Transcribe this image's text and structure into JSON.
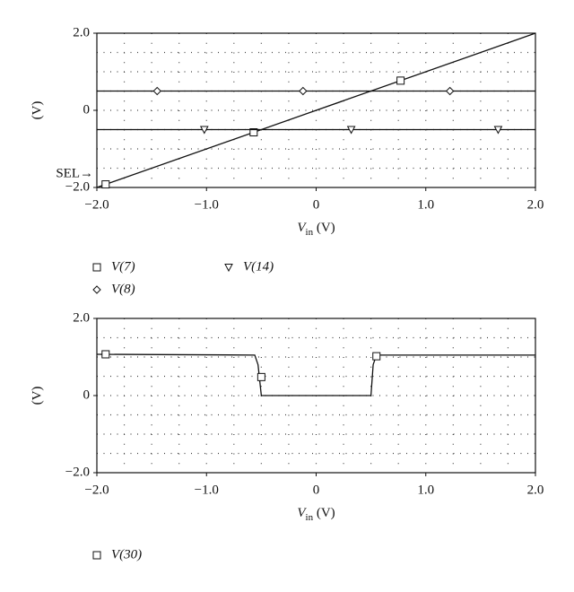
{
  "chart_data": [
    {
      "type": "line",
      "xlim": [
        -2,
        2
      ],
      "xticks": [
        {
          "value": -2,
          "label": "−2.0"
        },
        {
          "value": -1,
          "label": "−1.0"
        },
        0,
        {
          "value": 1,
          "label": "1.0"
        },
        {
          "value": 2,
          "label": "2.0"
        }
      ],
      "ylim": [
        -2,
        2
      ],
      "yticks": [
        {
          "value": -2,
          "label": "−2.0"
        },
        0,
        {
          "value": 2,
          "label": "2.0"
        }
      ],
      "minor_grid": {
        "x": 0.25,
        "y": 0.5
      },
      "ylabel": "(V)",
      "xlabel": {
        "symbol": "V",
        "subscript": "in",
        "unit": " (V)"
      },
      "annotation": {
        "text": "SEL→",
        "y": -2
      },
      "series": [
        {
          "name": "V(7)",
          "marker": "square",
          "color": "#111",
          "x": [
            -2,
            2
          ],
          "values": [
            -2,
            2
          ],
          "marker_x": [
            -1.92,
            -0.57,
            0.77
          ],
          "marker_values": [
            -1.92,
            -0.57,
            0.77
          ]
        },
        {
          "name": "V(14)",
          "marker": "triangle",
          "color": "#111",
          "x": [
            -2,
            2
          ],
          "values": [
            -0.5,
            -0.5
          ],
          "marker_x": [
            -1.02,
            0.32,
            1.66
          ],
          "marker_values": [
            -0.5,
            -0.5,
            -0.5
          ]
        },
        {
          "name": "V(8)",
          "marker": "diamond",
          "color": "#111",
          "x": [
            -2,
            2
          ],
          "values": [
            0.5,
            0.5
          ],
          "marker_x": [
            -1.45,
            -0.12,
            1.22
          ],
          "marker_values": [
            0.5,
            0.5,
            0.5
          ]
        }
      ]
    },
    {
      "type": "line",
      "xlim": [
        -2,
        2
      ],
      "xticks": [
        {
          "value": -2,
          "label": "−2.0"
        },
        {
          "value": -1,
          "label": "−1.0"
        },
        0,
        {
          "value": 1,
          "label": "1.0"
        },
        {
          "value": 2,
          "label": "2.0"
        }
      ],
      "ylim": [
        -2,
        2
      ],
      "yticks": [
        {
          "value": -2,
          "label": "−2.0"
        },
        0,
        {
          "value": 2,
          "label": "2.0"
        }
      ],
      "minor_grid": {
        "x": 0.25,
        "y": 0.5
      },
      "ylabel": "(V)",
      "xlabel": {
        "symbol": "V",
        "subscript": "in",
        "unit": " (V)"
      },
      "series": [
        {
          "name": "V(30)",
          "marker": "square",
          "color": "#111",
          "x": [
            -2,
            -0.56,
            -0.53,
            -0.5,
            0.5,
            0.52,
            0.55,
            2
          ],
          "values": [
            1.07,
            1.05,
            0.8,
            0,
            0,
            0.8,
            1.05,
            1.05
          ],
          "marker_x": [
            -1.92,
            -0.5,
            0.55
          ],
          "marker_values": [
            1.07,
            0.48,
            1.02
          ]
        }
      ]
    }
  ]
}
